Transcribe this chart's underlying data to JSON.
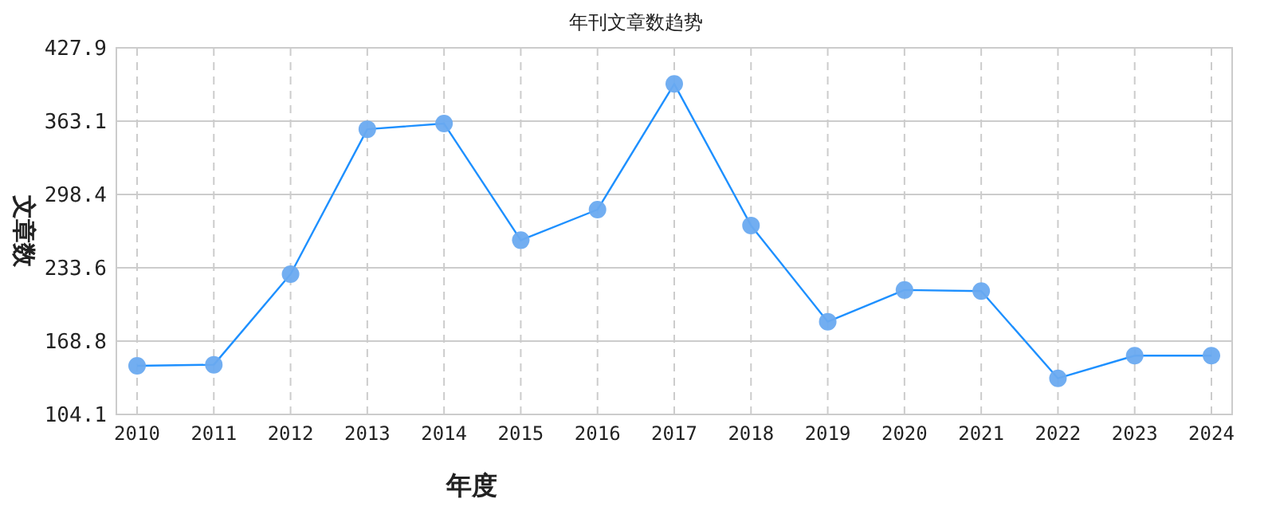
{
  "chart_data": {
    "type": "line",
    "title": "年刊文章数趋势",
    "xlabel": "年度",
    "ylabel": "文章数",
    "categories": [
      "2010",
      "2011",
      "2012",
      "2013",
      "2014",
      "2015",
      "2016",
      "2017",
      "2018",
      "2019",
      "2020",
      "2021",
      "2022",
      "2023",
      "2024"
    ],
    "series": [
      {
        "color": "#1e90ff",
        "values": [
          147,
          148,
          228,
          356,
          361,
          258,
          285,
          396,
          271,
          186,
          214,
          213,
          136,
          156,
          156
        ]
      }
    ],
    "ylim": [
      104.1,
      427.9
    ],
    "yticks": [
      104.1,
      168.8,
      233.6,
      298.4,
      363.1,
      427.9
    ],
    "grid": true,
    "marker": "circle",
    "line_style": "solid"
  }
}
